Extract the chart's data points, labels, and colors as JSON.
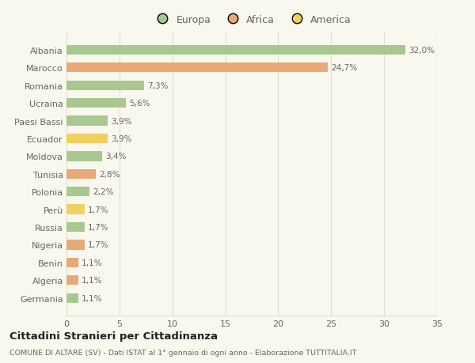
{
  "categories": [
    "Albania",
    "Marocco",
    "Romania",
    "Ucraina",
    "Paesi Bassi",
    "Ecuador",
    "Moldova",
    "Tunisia",
    "Polonia",
    "Perù",
    "Russia",
    "Nigeria",
    "Benin",
    "Algeria",
    "Germania"
  ],
  "values": [
    32.0,
    24.7,
    7.3,
    5.6,
    3.9,
    3.9,
    3.4,
    2.8,
    2.2,
    1.7,
    1.7,
    1.7,
    1.1,
    1.1,
    1.1
  ],
  "labels": [
    "32,0%",
    "24,7%",
    "7,3%",
    "5,6%",
    "3,9%",
    "3,9%",
    "3,4%",
    "2,8%",
    "2,2%",
    "1,7%",
    "1,7%",
    "1,7%",
    "1,1%",
    "1,1%",
    "1,1%"
  ],
  "continents": [
    "Europa",
    "Africa",
    "Europa",
    "Europa",
    "Europa",
    "America",
    "Europa",
    "Africa",
    "Europa",
    "America",
    "Europa",
    "Africa",
    "Africa",
    "Africa",
    "Europa"
  ],
  "colors": {
    "Europa": "#a8c890",
    "Africa": "#e8a878",
    "America": "#f0d060"
  },
  "xlim": [
    0,
    35
  ],
  "xticks": [
    0,
    5,
    10,
    15,
    20,
    25,
    30,
    35
  ],
  "title": "Cittadini Stranieri per Cittadinanza",
  "subtitle": "COMUNE DI ALTARE (SV) - Dati ISTAT al 1° gennaio di ogni anno - Elaborazione TUTTITALIA.IT",
  "background_color": "#f8f8ee",
  "grid_color": "#ddddcc",
  "text_color": "#666666",
  "bar_height": 0.55
}
